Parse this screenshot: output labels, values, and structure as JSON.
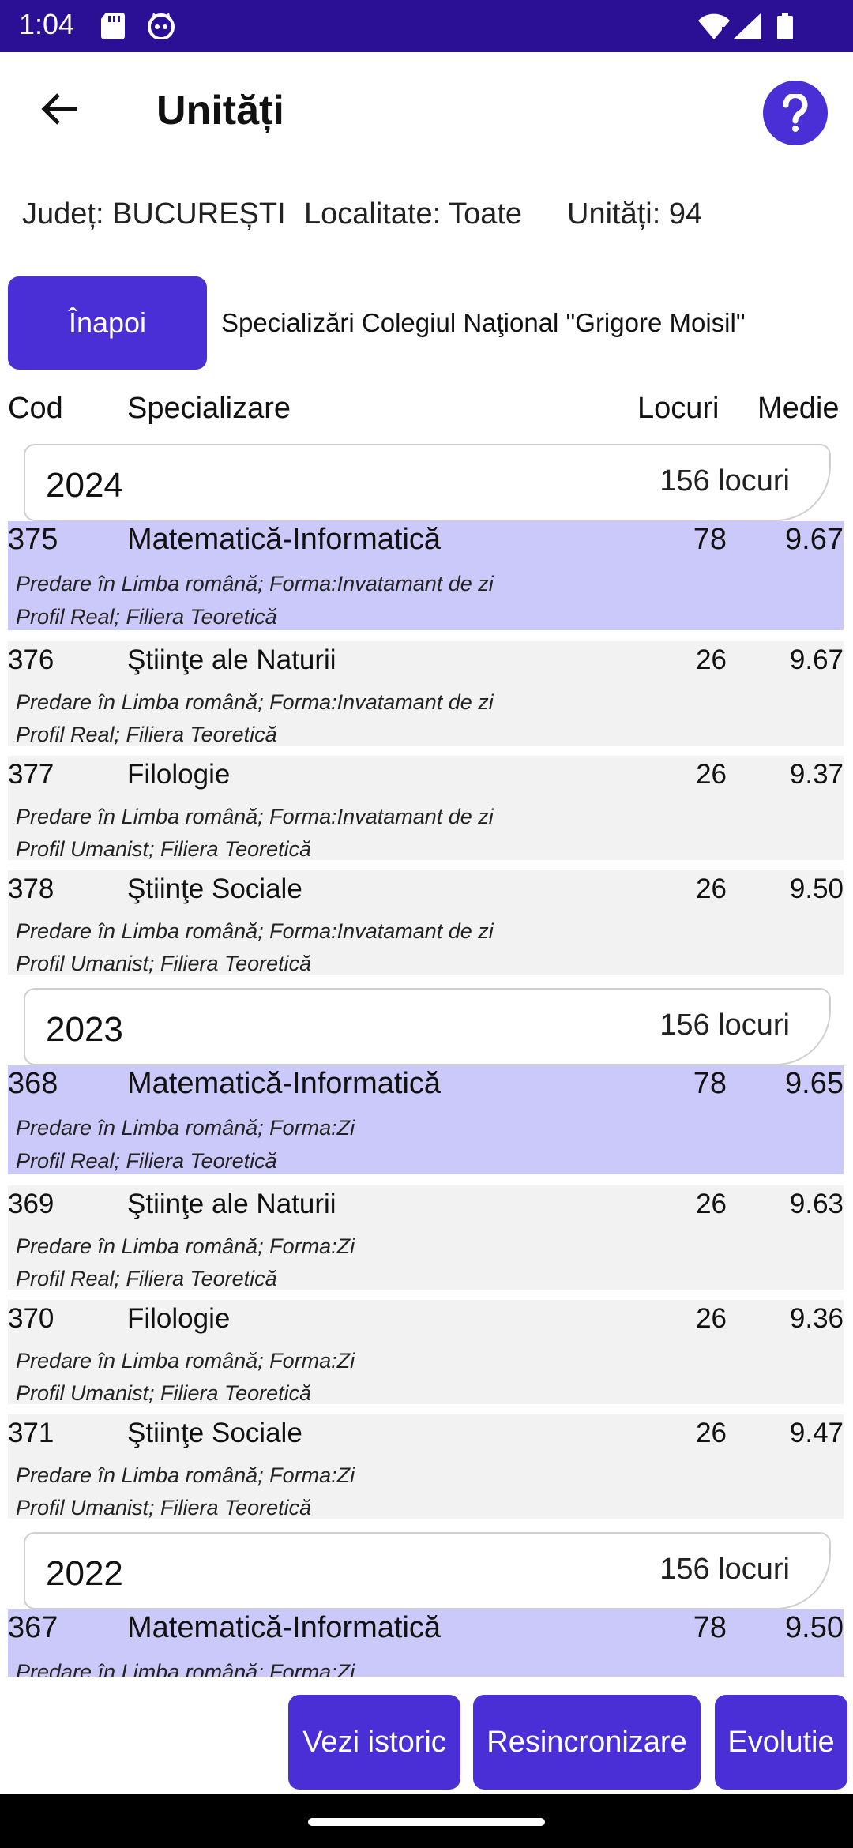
{
  "status": {
    "time": "1:04"
  },
  "header": {
    "title": "Unități"
  },
  "info": {
    "judet": "Județ: BUCUREȘTI",
    "localitate": "Localitate: Toate",
    "unitati": "Unități: 94"
  },
  "back_label": "Înapoi",
  "school_title": "Specializări Colegiul Naţional \"Grigore Moisil\"",
  "columns": {
    "cod": "Cod",
    "specializare": "Specializare",
    "locuri": "Locuri",
    "medie": "Medie"
  },
  "years": [
    {
      "year": "2024",
      "locuri": "156 locuri",
      "rows": [
        {
          "cod": "375",
          "spec": "Matematică-Informatică",
          "loc": "78",
          "medie": "9.67",
          "d1": "Predare în Limba română; Forma:Invatamant de zi",
          "d2": "Profil Real; Filiera Teoretică"
        },
        {
          "cod": "376",
          "spec": "Ştiinţe ale Naturii",
          "loc": "26",
          "medie": "9.67",
          "d1": "Predare în Limba română; Forma:Invatamant de zi",
          "d2": "Profil Real; Filiera Teoretică"
        },
        {
          "cod": "377",
          "spec": "Filologie",
          "loc": "26",
          "medie": "9.37",
          "d1": "Predare în Limba română; Forma:Invatamant de zi",
          "d2": "Profil Umanist; Filiera Teoretică"
        },
        {
          "cod": "378",
          "spec": "Ştiinţe Sociale",
          "loc": "26",
          "medie": "9.50",
          "d1": "Predare în Limba română; Forma:Invatamant de zi",
          "d2": "Profil Umanist; Filiera Teoretică"
        }
      ]
    },
    {
      "year": "2023",
      "locuri": "156 locuri",
      "rows": [
        {
          "cod": "368",
          "spec": "Matematică-Informatică",
          "loc": "78",
          "medie": "9.65",
          "d1": "Predare în Limba română; Forma:Zi",
          "d2": "Profil Real; Filiera Teoretică"
        },
        {
          "cod": "369",
          "spec": "Ştiinţe ale Naturii",
          "loc": "26",
          "medie": "9.63",
          "d1": "Predare în Limba română; Forma:Zi",
          "d2": "Profil Real; Filiera Teoretică"
        },
        {
          "cod": "370",
          "spec": "Filologie",
          "loc": "26",
          "medie": "9.36",
          "d1": "Predare în Limba română; Forma:Zi",
          "d2": "Profil Umanist; Filiera Teoretică"
        },
        {
          "cod": "371",
          "spec": "Ştiinţe Sociale",
          "loc": "26",
          "medie": "9.47",
          "d1": "Predare în Limba română; Forma:Zi",
          "d2": "Profil Umanist; Filiera Teoretică"
        }
      ]
    },
    {
      "year": "2022",
      "locuri": "156 locuri",
      "rows": [
        {
          "cod": "367",
          "spec": "Matematică-Informatică",
          "loc": "78",
          "medie": "9.50",
          "d1": "Predare în Limba română; Forma:Zi",
          "d2": ""
        }
      ]
    }
  ],
  "buttons": {
    "istoric": "Vezi istoric",
    "resync": "Resincronizare",
    "evolutie": "Evolutie"
  },
  "colors": {
    "status_bar": "#2b0f94",
    "accent": "#4b2fd6",
    "highlight_row": "#cbc8fa",
    "row_bg": "#f2f2f2"
  }
}
